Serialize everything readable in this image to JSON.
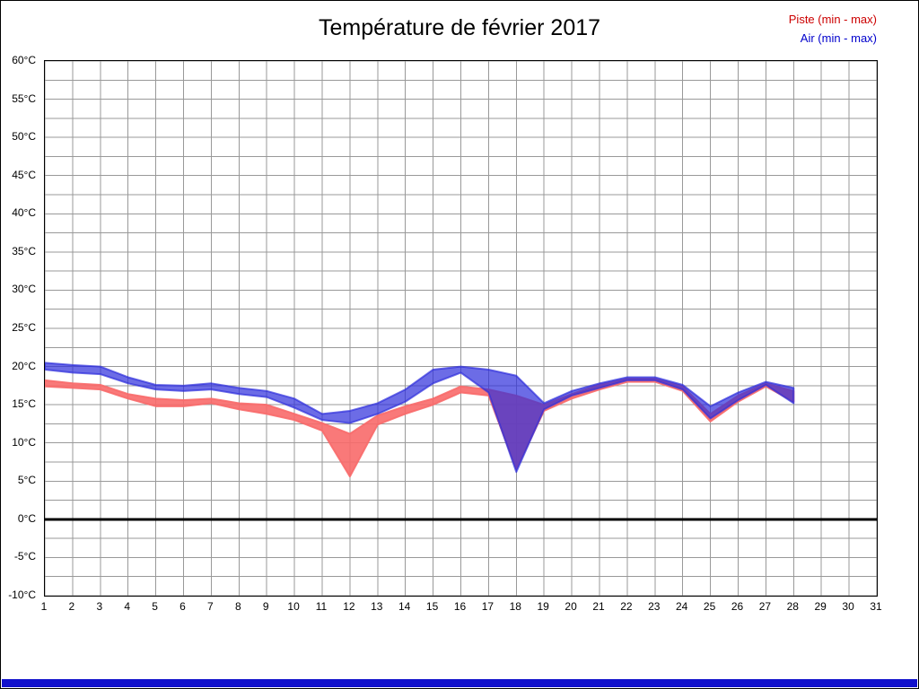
{
  "title": "Température de février 2017",
  "legend": [
    {
      "label": "Piste (min - max)",
      "color": "#cc0000"
    },
    {
      "label": "Air (min - max)",
      "color": "#0000cc"
    }
  ],
  "footer": {
    "bar_color": "#1111cc"
  },
  "chart_data": {
    "type": "area",
    "title": "Température de février 2017",
    "x_days": [
      1,
      2,
      3,
      4,
      5,
      6,
      7,
      8,
      9,
      10,
      11,
      12,
      13,
      14,
      15,
      16,
      17,
      18,
      19,
      20,
      21,
      22,
      23,
      24,
      25,
      26,
      27,
      28
    ],
    "x_axis_ticks": [
      1,
      2,
      3,
      4,
      5,
      6,
      7,
      8,
      9,
      10,
      11,
      12,
      13,
      14,
      15,
      16,
      17,
      18,
      19,
      20,
      21,
      22,
      23,
      24,
      25,
      26,
      27,
      28,
      29,
      30,
      31
    ],
    "xlim": [
      1,
      31
    ],
    "ylim": [
      -10,
      60
    ],
    "y_tick_step": 5,
    "y_tick_suffix": "°C",
    "grid": {
      "color": "#999999",
      "y_minor_step": 2.5,
      "x_step": 1
    },
    "zero_line": {
      "value": 0,
      "color": "#000000",
      "width": 3
    },
    "series": [
      {
        "name": "Piste (min - max)",
        "band": true,
        "fill": "#f86a6a",
        "opacity": 0.9,
        "max": [
          18.2,
          17.8,
          17.6,
          16.4,
          15.8,
          15.6,
          15.8,
          15.2,
          15.0,
          13.8,
          12.6,
          11.2,
          13.6,
          14.8,
          15.8,
          17.4,
          17.0,
          16.2,
          15.0,
          16.4,
          17.6,
          18.4,
          18.4,
          17.4,
          13.8,
          16.2,
          17.8,
          16.8
        ],
        "min": [
          17.4,
          17.2,
          17.0,
          15.8,
          14.8,
          14.8,
          15.2,
          14.4,
          13.8,
          13.0,
          11.6,
          5.6,
          12.4,
          13.8,
          15.0,
          16.6,
          16.2,
          6.6,
          14.2,
          15.8,
          17.0,
          18.0,
          18.0,
          16.8,
          12.8,
          15.4,
          17.4,
          15.4
        ]
      },
      {
        "name": "Air (min - max)",
        "band": true,
        "fill": "#2d2ddc",
        "opacity": 0.7,
        "max": [
          20.5,
          20.2,
          20.0,
          18.6,
          17.6,
          17.5,
          17.8,
          17.2,
          16.8,
          15.8,
          13.8,
          14.2,
          15.2,
          17.0,
          19.6,
          20.0,
          19.6,
          18.8,
          15.2,
          16.8,
          17.8,
          18.6,
          18.6,
          17.6,
          14.8,
          16.6,
          18.0,
          17.2
        ],
        "min": [
          19.6,
          19.2,
          19.0,
          17.8,
          17.0,
          16.8,
          17.0,
          16.4,
          16.0,
          14.6,
          13.0,
          12.6,
          13.8,
          15.4,
          17.8,
          19.2,
          16.6,
          6.2,
          14.4,
          16.2,
          17.2,
          18.2,
          18.2,
          17.0,
          13.2,
          15.6,
          17.6,
          15.2
        ]
      }
    ]
  }
}
